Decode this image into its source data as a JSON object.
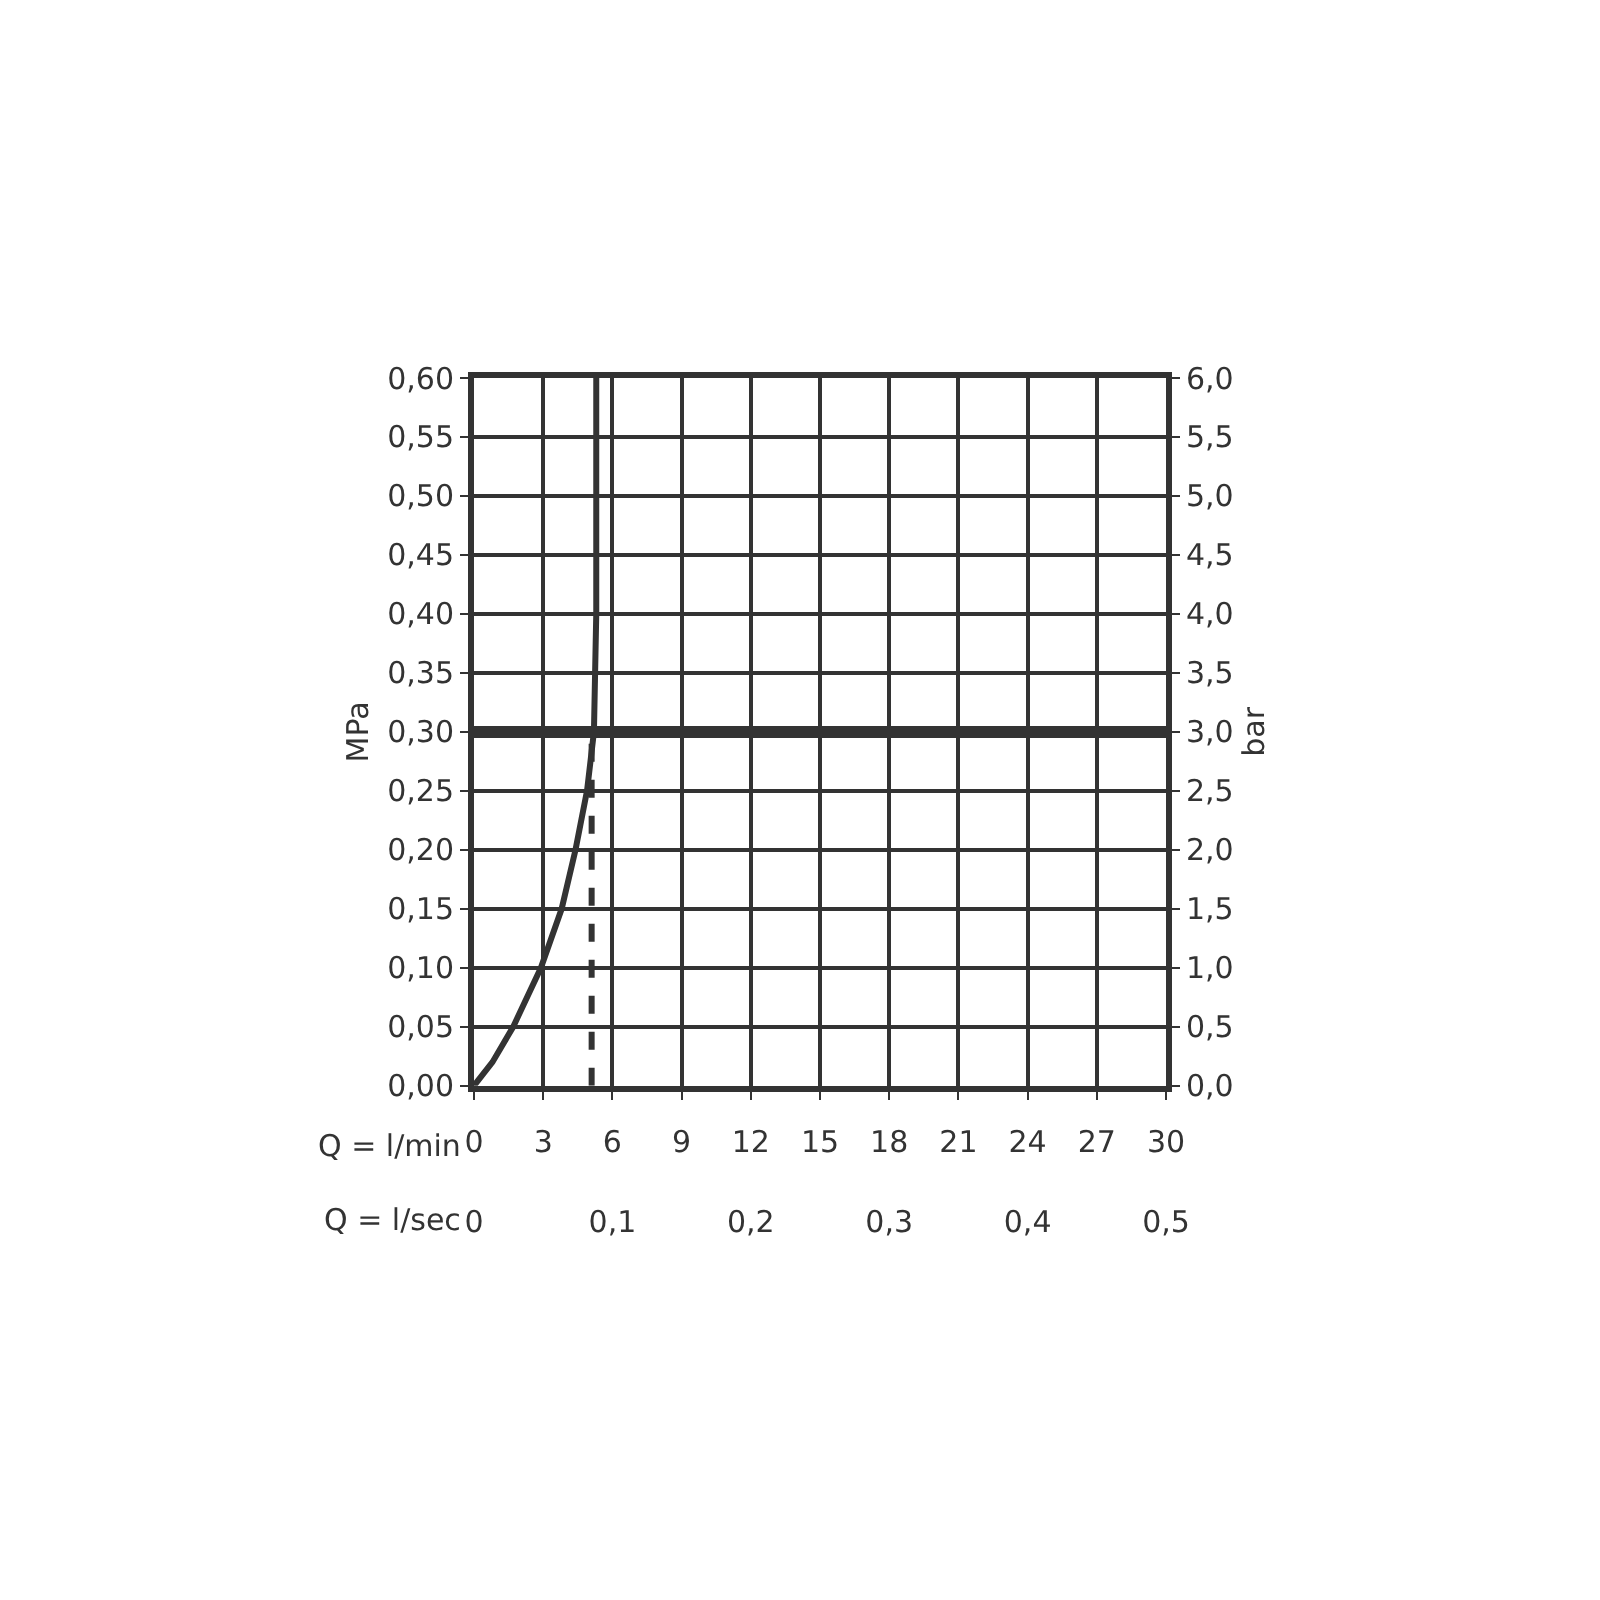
{
  "chart_data": {
    "type": "line",
    "xlabel": "Q = l/min",
    "x2label": "Q = l/sec",
    "ylabel": "MPa",
    "y2label": "bar",
    "xlim": [
      0,
      30
    ],
    "xticks": [
      0,
      3,
      6,
      9,
      12,
      15,
      18,
      21,
      24,
      27,
      30
    ],
    "x2lim": [
      0,
      0.5
    ],
    "x2ticks": [
      0,
      {
        "value": 0.1,
        "label": "0,1"
      },
      {
        "value": 0.2,
        "label": "0,2"
      },
      {
        "value": 0.3,
        "label": "0,3"
      },
      {
        "value": 0.4,
        "label": "0,4"
      },
      {
        "value": 0.5,
        "label": "0,5"
      }
    ],
    "ylim": [
      0,
      0.6
    ],
    "yticks": [
      {
        "value": 0,
        "label": "0,00"
      },
      {
        "value": 0.05,
        "label": "0,05"
      },
      {
        "value": 0.1,
        "label": "0,10"
      },
      {
        "value": 0.15,
        "label": "0,15"
      },
      {
        "value": 0.2,
        "label": "0,20"
      },
      {
        "value": 0.25,
        "label": "0,25"
      },
      {
        "value": 0.3,
        "label": "0,30"
      },
      {
        "value": 0.35,
        "label": "0,35"
      },
      {
        "value": 0.4,
        "label": "0,40"
      },
      {
        "value": 0.45,
        "label": "0,45"
      },
      {
        "value": 0.5,
        "label": "0,50"
      },
      {
        "value": 0.55,
        "label": "0,55"
      },
      {
        "value": 0.6,
        "label": "0,60"
      }
    ],
    "y2lim": [
      0,
      6
    ],
    "y2ticks": [
      {
        "value": 0,
        "label": "0,0"
      },
      {
        "value": 0.5,
        "label": "0,5"
      },
      {
        "value": 1,
        "label": "1,0"
      },
      {
        "value": 1.5,
        "label": "1,5"
      },
      {
        "value": 2,
        "label": "2,0"
      },
      {
        "value": 2.5,
        "label": "2,5"
      },
      {
        "value": 3,
        "label": "3,0"
      },
      {
        "value": 3.5,
        "label": "3,5"
      },
      {
        "value": 4,
        "label": "4,0"
      },
      {
        "value": 4.5,
        "label": "4,5"
      },
      {
        "value": 5,
        "label": "5,0"
      },
      {
        "value": 5.5,
        "label": "5,5"
      },
      {
        "value": 6,
        "label": "6,0"
      }
    ],
    "grid": true,
    "series": [
      {
        "color": "#333333",
        "x": [
          0,
          0.8,
          1.7,
          2.9,
          3.8,
          4.4,
          4.9,
          5.2,
          5.3,
          5.3
        ],
        "values": [
          0,
          0.02,
          0.05,
          0.1,
          0.15,
          0.2,
          0.25,
          0.3,
          0.4,
          0.6
        ]
      },
      {
        "color": "#333333",
        "line_style": "dashed",
        "x": [
          5.1,
          5.1
        ],
        "values": [
          0,
          0.3
        ]
      }
    ],
    "ref_lines": [
      {
        "axis": "y",
        "value": 0.3,
        "color": "#333333"
      }
    ]
  }
}
